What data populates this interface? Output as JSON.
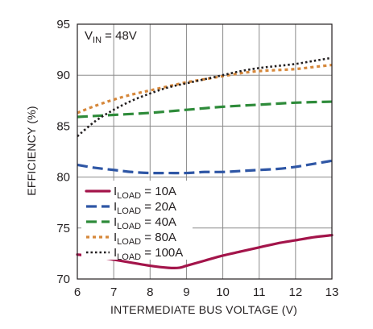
{
  "chart_data": {
    "type": "line",
    "xlabel": "INTERMEDIATE BUS VOLTAGE (V)",
    "ylabel": "EFFICIENCY (%)",
    "xlim": [
      6,
      13
    ],
    "ylim": [
      70,
      95
    ],
    "xticks": [
      "6",
      "7",
      "8",
      "9",
      "10",
      "11",
      "12",
      "13"
    ],
    "yticks": [
      "70",
      "75",
      "80",
      "85",
      "90",
      "95"
    ],
    "grid": true,
    "legend_position": "bottom-left",
    "annotation": {
      "main": "V",
      "sub": "IN",
      "rest": " = 48V"
    },
    "series": [
      {
        "key": "s10",
        "name_main": "I",
        "name_sub": "LOAD",
        "name_rest": " = 10A",
        "color": "#a3144a",
        "style": "solid",
        "x": [
          6,
          6.5,
          7,
          7.5,
          8,
          8.5,
          8.8,
          9,
          9.5,
          10,
          10.5,
          11,
          11.5,
          12,
          12.5,
          13
        ],
        "y": [
          72.4,
          72.2,
          71.9,
          71.6,
          71.3,
          71.1,
          71.1,
          71.3,
          71.8,
          72.3,
          72.7,
          73.1,
          73.5,
          73.8,
          74.1,
          74.3
        ]
      },
      {
        "key": "s20",
        "name_main": "I",
        "name_sub": "LOAD",
        "name_rest": " = 20A",
        "color": "#2e56a5",
        "style": "dash",
        "x": [
          6,
          6.5,
          7,
          7.5,
          8,
          8.5,
          9,
          9.5,
          10,
          10.5,
          11,
          11.5,
          12,
          12.5,
          13
        ],
        "y": [
          81.2,
          80.9,
          80.7,
          80.5,
          80.4,
          80.4,
          80.4,
          80.5,
          80.5,
          80.6,
          80.7,
          80.8,
          81.0,
          81.3,
          81.6
        ]
      },
      {
        "key": "s40",
        "name_main": "I",
        "name_sub": "LOAD",
        "name_rest": " = 40A",
        "color": "#2e8b3a",
        "style": "dash",
        "x": [
          6,
          7,
          8,
          9,
          10,
          11,
          12,
          13
        ],
        "y": [
          85.9,
          86.1,
          86.3,
          86.6,
          86.9,
          87.1,
          87.3,
          87.4
        ]
      },
      {
        "key": "s80",
        "name_main": "I",
        "name_sub": "LOAD",
        "name_rest": " = 80A",
        "color": "#d6883b",
        "style": "dot",
        "x": [
          6,
          6.5,
          7,
          7.5,
          8,
          8.5,
          9,
          9.5,
          10,
          10.5,
          11,
          11.5,
          12,
          12.5,
          13
        ],
        "y": [
          86.3,
          87.0,
          87.6,
          88.1,
          88.5,
          88.9,
          89.3,
          89.6,
          89.9,
          90.2,
          90.4,
          90.5,
          90.6,
          90.8,
          91.0
        ]
      },
      {
        "key": "s100",
        "name_main": "I",
        "name_sub": "LOAD",
        "name_rest": " = 100A",
        "color": "#231f20",
        "style": "finedot",
        "x": [
          6,
          6.5,
          7,
          7.5,
          8,
          8.5,
          9,
          9.5,
          10,
          10.5,
          11,
          11.5,
          12,
          12.5,
          13
        ],
        "y": [
          84.0,
          85.5,
          86.6,
          87.5,
          88.2,
          88.8,
          89.2,
          89.6,
          90.0,
          90.4,
          90.7,
          90.9,
          91.1,
          91.4,
          91.7
        ]
      }
    ]
  }
}
